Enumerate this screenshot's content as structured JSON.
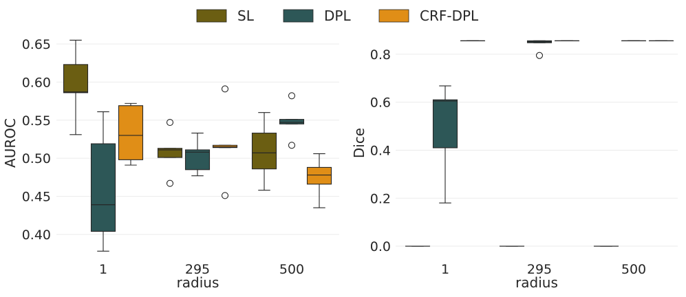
{
  "chart_data": [
    {
      "type": "box",
      "title": "",
      "xlabel": "radius",
      "ylabel": "AUROC",
      "categories": [
        "1",
        "295",
        "500"
      ],
      "ylim": [
        0.372,
        0.668
      ],
      "yticks": [
        0.4,
        0.45,
        0.5,
        0.55,
        0.6,
        0.65
      ],
      "ytick_labels": [
        "0.40",
        "0.45",
        "0.50",
        "0.55",
        "0.60",
        "0.65"
      ],
      "grid": true,
      "series": [
        {
          "name": "SL",
          "color": "#6b5e12",
          "boxes": [
            {
              "category": "1",
              "whislo": 0.531,
              "q1": 0.586,
              "med": 0.587,
              "q3": 0.623,
              "whishi": 0.655,
              "fliers": []
            },
            {
              "category": "295",
              "whislo": 0.501,
              "q1": 0.501,
              "med": 0.511,
              "q3": 0.513,
              "whishi": 0.513,
              "fliers": [
                0.547,
                0.467
              ]
            },
            {
              "category": "500",
              "whislo": 0.458,
              "q1": 0.486,
              "med": 0.507,
              "q3": 0.533,
              "whishi": 0.56,
              "fliers": []
            }
          ]
        },
        {
          "name": "DPL",
          "color": "#2d5757",
          "boxes": [
            {
              "category": "1",
              "whislo": 0.378,
              "q1": 0.404,
              "med": 0.439,
              "q3": 0.519,
              "whishi": 0.561,
              "fliers": []
            },
            {
              "category": "295",
              "whislo": 0.477,
              "q1": 0.485,
              "med": 0.508,
              "q3": 0.511,
              "whishi": 0.533,
              "fliers": []
            },
            {
              "category": "500",
              "whislo": 0.545,
              "q1": 0.545,
              "med": 0.547,
              "q3": 0.551,
              "whishi": 0.551,
              "fliers": [
                0.582,
                0.517
              ]
            }
          ]
        },
        {
          "name": "CRF-DPL",
          "color": "#e08e17",
          "boxes": [
            {
              "category": "1",
              "whislo": 0.491,
              "q1": 0.498,
              "med": 0.53,
              "q3": 0.569,
              "whishi": 0.572,
              "fliers": []
            },
            {
              "category": "295",
              "whislo": 0.514,
              "q1": 0.514,
              "med": 0.515,
              "q3": 0.517,
              "whishi": 0.517,
              "fliers": [
                0.591,
                0.451
              ]
            },
            {
              "category": "500",
              "whislo": 0.435,
              "q1": 0.466,
              "med": 0.478,
              "q3": 0.488,
              "whishi": 0.506,
              "fliers": []
            }
          ]
        }
      ]
    },
    {
      "type": "box",
      "title": "",
      "xlabel": "radius",
      "ylabel": "Dice",
      "categories": [
        "1",
        "295",
        "500"
      ],
      "ylim": [
        -0.04,
        0.9
      ],
      "yticks": [
        0.0,
        0.2,
        0.4,
        0.6,
        0.8
      ],
      "ytick_labels": [
        "0.0",
        "0.2",
        "0.4",
        "0.6",
        "0.8"
      ],
      "grid": true,
      "series": [
        {
          "name": "SL",
          "color": "#6b5e12",
          "boxes": [
            {
              "category": "1",
              "whislo": 0.0,
              "q1": 0.0,
              "med": 0.0,
              "q3": 0.0,
              "whishi": 0.0,
              "fliers": []
            },
            {
              "category": "295",
              "whislo": 0.0,
              "q1": 0.0,
              "med": 0.0,
              "q3": 0.0,
              "whishi": 0.0,
              "fliers": []
            },
            {
              "category": "500",
              "whislo": 0.0,
              "q1": 0.0,
              "med": 0.0,
              "q3": 0.0,
              "whishi": 0.0,
              "fliers": []
            }
          ]
        },
        {
          "name": "DPL",
          "color": "#2d5757",
          "boxes": [
            {
              "category": "1",
              "whislo": 0.18,
              "q1": 0.41,
              "med": 0.605,
              "q3": 0.61,
              "whishi": 0.668,
              "fliers": []
            },
            {
              "category": "295",
              "whislo": 0.848,
              "q1": 0.848,
              "med": 0.852,
              "q3": 0.856,
              "whishi": 0.856,
              "fliers": [
                0.795
              ]
            },
            {
              "category": "500",
              "whislo": 0.856,
              "q1": 0.856,
              "med": 0.856,
              "q3": 0.856,
              "whishi": 0.856,
              "fliers": []
            }
          ]
        },
        {
          "name": "CRF-DPL",
          "color": "#e08e17",
          "boxes": [
            {
              "category": "1",
              "whislo": 0.856,
              "q1": 0.856,
              "med": 0.856,
              "q3": 0.856,
              "whishi": 0.856,
              "fliers": []
            },
            {
              "category": "295",
              "whislo": 0.856,
              "q1": 0.856,
              "med": 0.856,
              "q3": 0.856,
              "whishi": 0.856,
              "fliers": []
            },
            {
              "category": "500",
              "whislo": 0.856,
              "q1": 0.856,
              "med": 0.856,
              "q3": 0.856,
              "whishi": 0.856,
              "fliers": []
            }
          ]
        }
      ]
    }
  ],
  "legend": {
    "position": "top-center",
    "entries": [
      {
        "label": "SL",
        "color": "#6b5e12"
      },
      {
        "label": "DPL",
        "color": "#2d5757"
      },
      {
        "label": "CRF-DPL",
        "color": "#e08e17"
      }
    ]
  }
}
